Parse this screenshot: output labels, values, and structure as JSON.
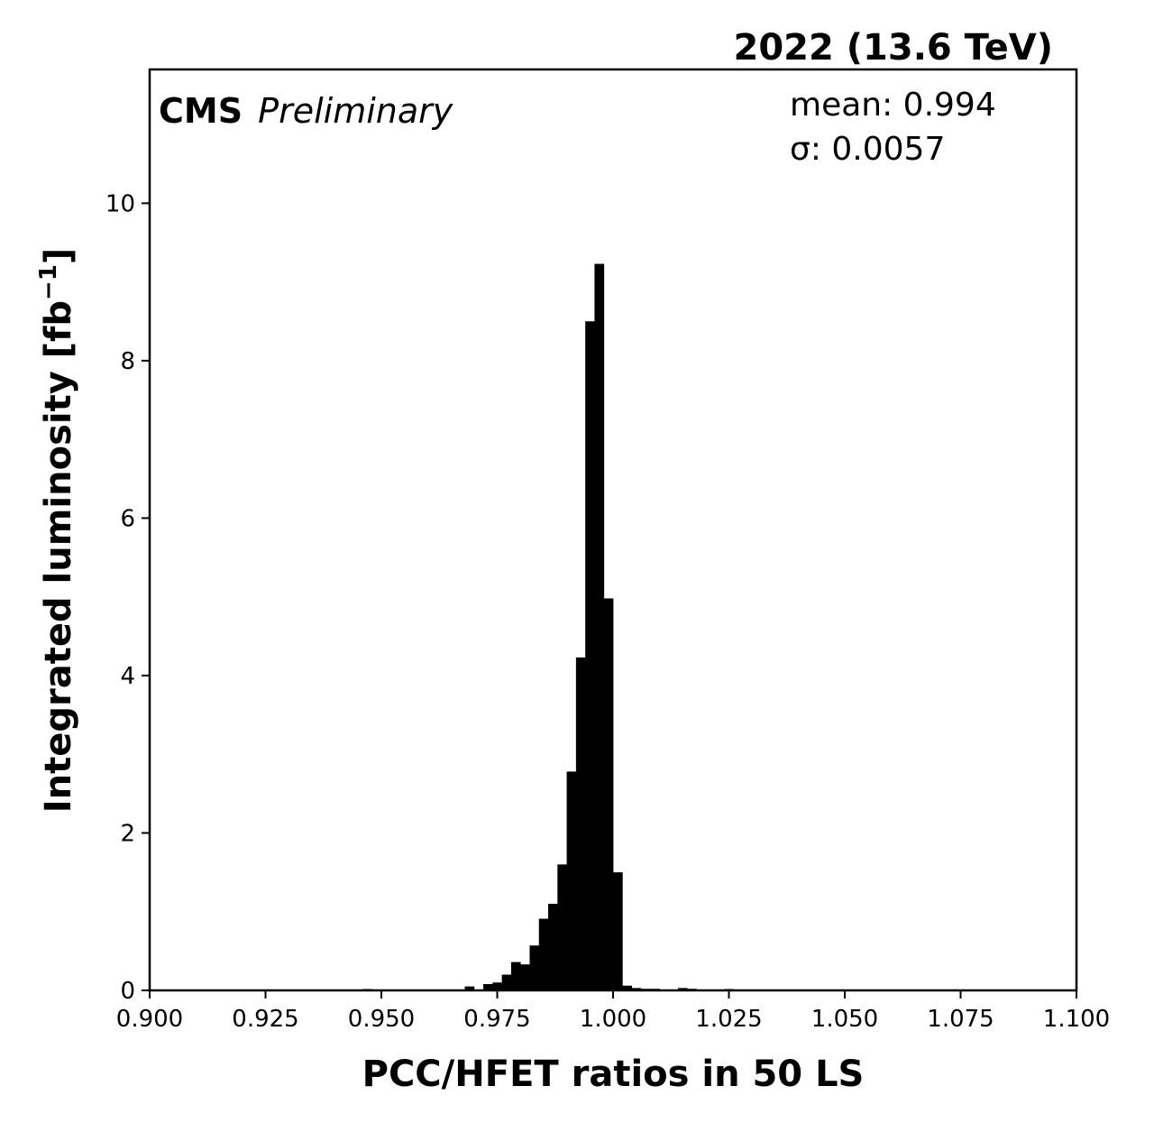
{
  "chart_data": {
    "type": "bar",
    "title": "2022 (13.6 TeV)",
    "experiment": "CMS",
    "status_label": "Preliminary",
    "xlabel": "PCC/HFET ratios in 50 LS",
    "ylabel_main": "Integrated luminosity [fb",
    "ylabel_sup": "−1",
    "ylabel_close": "]",
    "stats": {
      "mean": "mean: 0.994",
      "sigma": "σ: 0.0057"
    },
    "xlim": [
      0.9,
      1.1
    ],
    "ylim": [
      0,
      11.7
    ],
    "x_ticks": [
      {
        "value": 0.9,
        "label": "0.900"
      },
      {
        "value": 0.925,
        "label": "0.925"
      },
      {
        "value": 0.95,
        "label": "0.950"
      },
      {
        "value": 0.975,
        "label": "0.975"
      },
      {
        "value": 1.0,
        "label": "1.000"
      },
      {
        "value": 1.025,
        "label": "1.025"
      },
      {
        "value": 1.05,
        "label": "1.050"
      },
      {
        "value": 1.075,
        "label": "1.075"
      },
      {
        "value": 1.1,
        "label": "1.100"
      }
    ],
    "y_ticks": [
      {
        "value": 0,
        "label": "0"
      },
      {
        "value": 2,
        "label": "2"
      },
      {
        "value": 4,
        "label": "4"
      },
      {
        "value": 6,
        "label": "6"
      },
      {
        "value": 8,
        "label": "8"
      },
      {
        "value": 10,
        "label": "10"
      }
    ],
    "bin_width": 0.002,
    "bins": [
      {
        "x0": 0.946,
        "value": 0.01
      },
      {
        "x0": 0.968,
        "value": 0.05
      },
      {
        "x0": 0.972,
        "value": 0.08
      },
      {
        "x0": 0.974,
        "value": 0.1
      },
      {
        "x0": 0.976,
        "value": 0.2
      },
      {
        "x0": 0.978,
        "value": 0.36
      },
      {
        "x0": 0.98,
        "value": 0.33
      },
      {
        "x0": 0.982,
        "value": 0.57
      },
      {
        "x0": 0.984,
        "value": 0.91
      },
      {
        "x0": 0.986,
        "value": 1.1
      },
      {
        "x0": 0.988,
        "value": 1.6
      },
      {
        "x0": 0.99,
        "value": 2.78
      },
      {
        "x0": 0.992,
        "value": 4.23
      },
      {
        "x0": 0.994,
        "value": 8.5
      },
      {
        "x0": 0.996,
        "value": 9.23
      },
      {
        "x0": 0.998,
        "value": 4.98
      },
      {
        "x0": 1.0,
        "value": 1.5
      },
      {
        "x0": 1.002,
        "value": 0.06
      },
      {
        "x0": 1.004,
        "value": 0.03
      },
      {
        "x0": 1.006,
        "value": 0.02
      },
      {
        "x0": 1.008,
        "value": 0.02
      },
      {
        "x0": 1.014,
        "value": 0.03
      },
      {
        "x0": 1.016,
        "value": 0.02
      },
      {
        "x0": 1.024,
        "value": 0.01
      }
    ],
    "bar_color": "#000000",
    "grid": false
  }
}
